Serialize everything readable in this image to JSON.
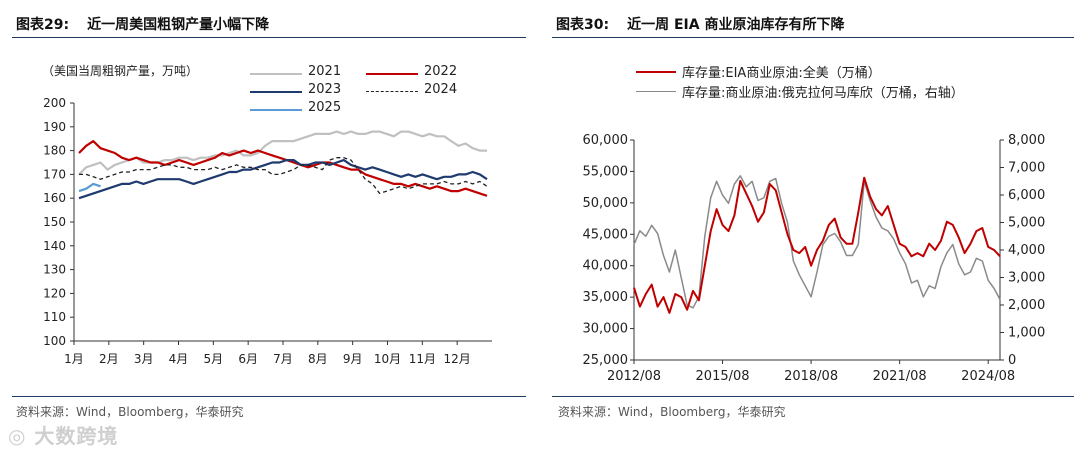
{
  "left": {
    "title_number": "图表29:",
    "title_text": "近一周美国粗钢产量小幅下降",
    "unit_label": "（美国当周粗钢产量，万吨）",
    "source": "资料来源：Wind，Bloomberg，华泰研究",
    "chart_data": {
      "type": "line",
      "x_ticks": [
        "1月",
        "2月",
        "3月",
        "4月",
        "5月",
        "6月",
        "7月",
        "8月",
        "9月",
        "10月",
        "11月",
        "12月"
      ],
      "ylim": [
        100,
        200
      ],
      "y_ticks": [
        100,
        110,
        120,
        130,
        140,
        150,
        160,
        170,
        180,
        190,
        200
      ],
      "grid": false,
      "legend_position": "top",
      "series": [
        {
          "name": "2021",
          "color": "#c0c0c0",
          "dash": "solid",
          "width": 2.2,
          "values": [
            170,
            173,
            174,
            175,
            172,
            174,
            175,
            176,
            177,
            175,
            175,
            175,
            176,
            176,
            177,
            177,
            176,
            177,
            177,
            178,
            178,
            179,
            180,
            178,
            178,
            179,
            182,
            184,
            184,
            184,
            184,
            185,
            186,
            187,
            187,
            187,
            188,
            187,
            188,
            187,
            187,
            188,
            188,
            187,
            186,
            188,
            188,
            187,
            186,
            187,
            186,
            186,
            184,
            182,
            183,
            181,
            180,
            180
          ]
        },
        {
          "name": "2022",
          "color": "#c00000",
          "dash": "solid",
          "width": 2.2,
          "values": [
            179,
            182,
            184,
            181,
            180,
            179,
            177,
            176,
            177,
            176,
            175,
            175,
            174,
            175,
            176,
            175,
            174,
            175,
            176,
            177,
            179,
            178,
            179,
            180,
            179,
            180,
            179,
            178,
            177,
            176,
            175,
            174,
            173,
            174,
            175,
            175,
            174,
            173,
            172,
            172,
            170,
            169,
            168,
            167,
            166,
            166,
            165,
            166,
            165,
            164,
            165,
            164,
            163,
            163,
            164,
            163,
            162,
            161
          ]
        },
        {
          "name": "2023",
          "color": "#1f3a6e",
          "dash": "solid",
          "width": 2.2,
          "values": [
            160,
            161,
            162,
            163,
            164,
            165,
            166,
            166,
            167,
            166,
            167,
            168,
            168,
            168,
            168,
            167,
            166,
            167,
            168,
            169,
            170,
            171,
            171,
            172,
            172,
            173,
            174,
            175,
            175,
            176,
            176,
            174,
            174,
            175,
            175,
            174,
            175,
            176,
            174,
            173,
            172,
            173,
            172,
            171,
            170,
            169,
            170,
            169,
            170,
            169,
            168,
            169,
            169,
            170,
            170,
            171,
            170,
            168
          ]
        },
        {
          "name": "2024",
          "color": "#222222",
          "dash": "dashed",
          "width": 1.3,
          "values": [
            170,
            170,
            169,
            168,
            169,
            170,
            171,
            171,
            172,
            172,
            172,
            173,
            174,
            174,
            173,
            173,
            172,
            172,
            172,
            173,
            172,
            173,
            174,
            173,
            173,
            172,
            172,
            170,
            170,
            171,
            172,
            174,
            174,
            173,
            172,
            176,
            177,
            177,
            176,
            172,
            168,
            166,
            162,
            163,
            164,
            165,
            164,
            165,
            166,
            166,
            166,
            167,
            166,
            166,
            167,
            166,
            167,
            165
          ]
        },
        {
          "name": "2025",
          "color": "#5b9bd5",
          "dash": "solid",
          "width": 2.2,
          "values": [
            163,
            164,
            166,
            165
          ]
        }
      ]
    }
  },
  "right": {
    "title_number": "图表30:",
    "title_text": "近一周 EIA 商业原油库存有所下降",
    "source": "资料来源：Wind，Bloomberg，华泰研究",
    "chart_data": {
      "type": "line",
      "x_ticks": [
        "2012/08",
        "2015/08",
        "2018/08",
        "2021/08",
        "2024/08"
      ],
      "x_range": [
        2012.6,
        2025.0
      ],
      "left_ylim": [
        25000,
        60000
      ],
      "left_y_ticks": [
        "25,000",
        "30,000",
        "35,000",
        "40,000",
        "45,000",
        "50,000",
        "55,000",
        "60,000"
      ],
      "right_ylim": [
        0,
        8000
      ],
      "right_y_ticks": [
        "0",
        "1,000",
        "2,000",
        "3,000",
        "4,000",
        "5,000",
        "6,000",
        "7,000",
        "8,000"
      ],
      "grid": false,
      "legend_position": "top",
      "series": [
        {
          "name": "库存量:EIA商业原油:全美（万桶）",
          "color": "#c00000",
          "axis": "left",
          "width": 2,
          "x": [
            2012.6,
            2012.8,
            2013.0,
            2013.2,
            2013.4,
            2013.6,
            2013.8,
            2014.0,
            2014.2,
            2014.4,
            2014.6,
            2014.8,
            2015.0,
            2015.2,
            2015.4,
            2015.6,
            2015.8,
            2016.0,
            2016.2,
            2016.4,
            2016.6,
            2016.8,
            2017.0,
            2017.2,
            2017.4,
            2017.6,
            2017.8,
            2018.0,
            2018.2,
            2018.4,
            2018.6,
            2018.8,
            2019.0,
            2019.2,
            2019.4,
            2019.6,
            2019.8,
            2020.0,
            2020.2,
            2020.4,
            2020.6,
            2020.8,
            2021.0,
            2021.2,
            2021.4,
            2021.6,
            2021.8,
            2022.0,
            2022.2,
            2022.4,
            2022.6,
            2022.8,
            2023.0,
            2023.2,
            2023.4,
            2023.6,
            2023.8,
            2024.0,
            2024.2,
            2024.4,
            2024.6,
            2024.8,
            2025.0
          ],
          "y": [
            36500,
            33500,
            35500,
            37000,
            33500,
            35000,
            32500,
            35500,
            35000,
            33000,
            36000,
            34500,
            40000,
            45500,
            49000,
            46500,
            45500,
            48000,
            53500,
            51500,
            49500,
            47000,
            48500,
            53000,
            52000,
            48500,
            45000,
            42500,
            42000,
            43000,
            40000,
            42500,
            44000,
            46500,
            47500,
            44500,
            43500,
            43500,
            48500,
            54000,
            51000,
            49000,
            48000,
            49500,
            46500,
            43500,
            43000,
            41500,
            42000,
            41500,
            43500,
            42500,
            44000,
            47000,
            46500,
            44500,
            42000,
            43500,
            45500,
            46000,
            43000,
            42500,
            41500
          ]
        },
        {
          "name": "库存量:商业原油:俄克拉何马库欣（万桶，右轴）",
          "color": "#8a8a8a",
          "axis": "right",
          "width": 1.5,
          "x": [
            2012.6,
            2012.8,
            2013.0,
            2013.2,
            2013.4,
            2013.6,
            2013.8,
            2014.0,
            2014.2,
            2014.4,
            2014.6,
            2014.8,
            2015.0,
            2015.2,
            2015.4,
            2015.6,
            2015.8,
            2016.0,
            2016.2,
            2016.4,
            2016.6,
            2016.8,
            2017.0,
            2017.2,
            2017.4,
            2017.6,
            2017.8,
            2018.0,
            2018.2,
            2018.4,
            2018.6,
            2018.8,
            2019.0,
            2019.2,
            2019.4,
            2019.6,
            2019.8,
            2020.0,
            2020.2,
            2020.4,
            2020.6,
            2020.8,
            2021.0,
            2021.2,
            2021.4,
            2021.6,
            2021.8,
            2022.0,
            2022.2,
            2022.4,
            2022.6,
            2022.8,
            2023.0,
            2023.2,
            2023.4,
            2023.6,
            2023.8,
            2024.0,
            2024.2,
            2024.4,
            2024.6,
            2024.8,
            2025.0
          ],
          "y": [
            4200,
            4700,
            4500,
            4900,
            4600,
            3800,
            3200,
            4000,
            3000,
            2000,
            1900,
            2300,
            4500,
            5900,
            6500,
            6000,
            5700,
            6400,
            6700,
            6300,
            6500,
            5800,
            5900,
            6500,
            6600,
            5700,
            5000,
            3600,
            3100,
            2700,
            2300,
            3200,
            4200,
            4500,
            4600,
            4300,
            3800,
            3800,
            4200,
            6500,
            5800,
            5200,
            4800,
            4700,
            4400,
            3900,
            3500,
            2800,
            2900,
            2300,
            2700,
            2600,
            3400,
            3900,
            4200,
            3500,
            3100,
            3200,
            3700,
            3600,
            2900,
            2600,
            2200
          ]
        }
      ]
    }
  },
  "watermark": "大数跨境"
}
